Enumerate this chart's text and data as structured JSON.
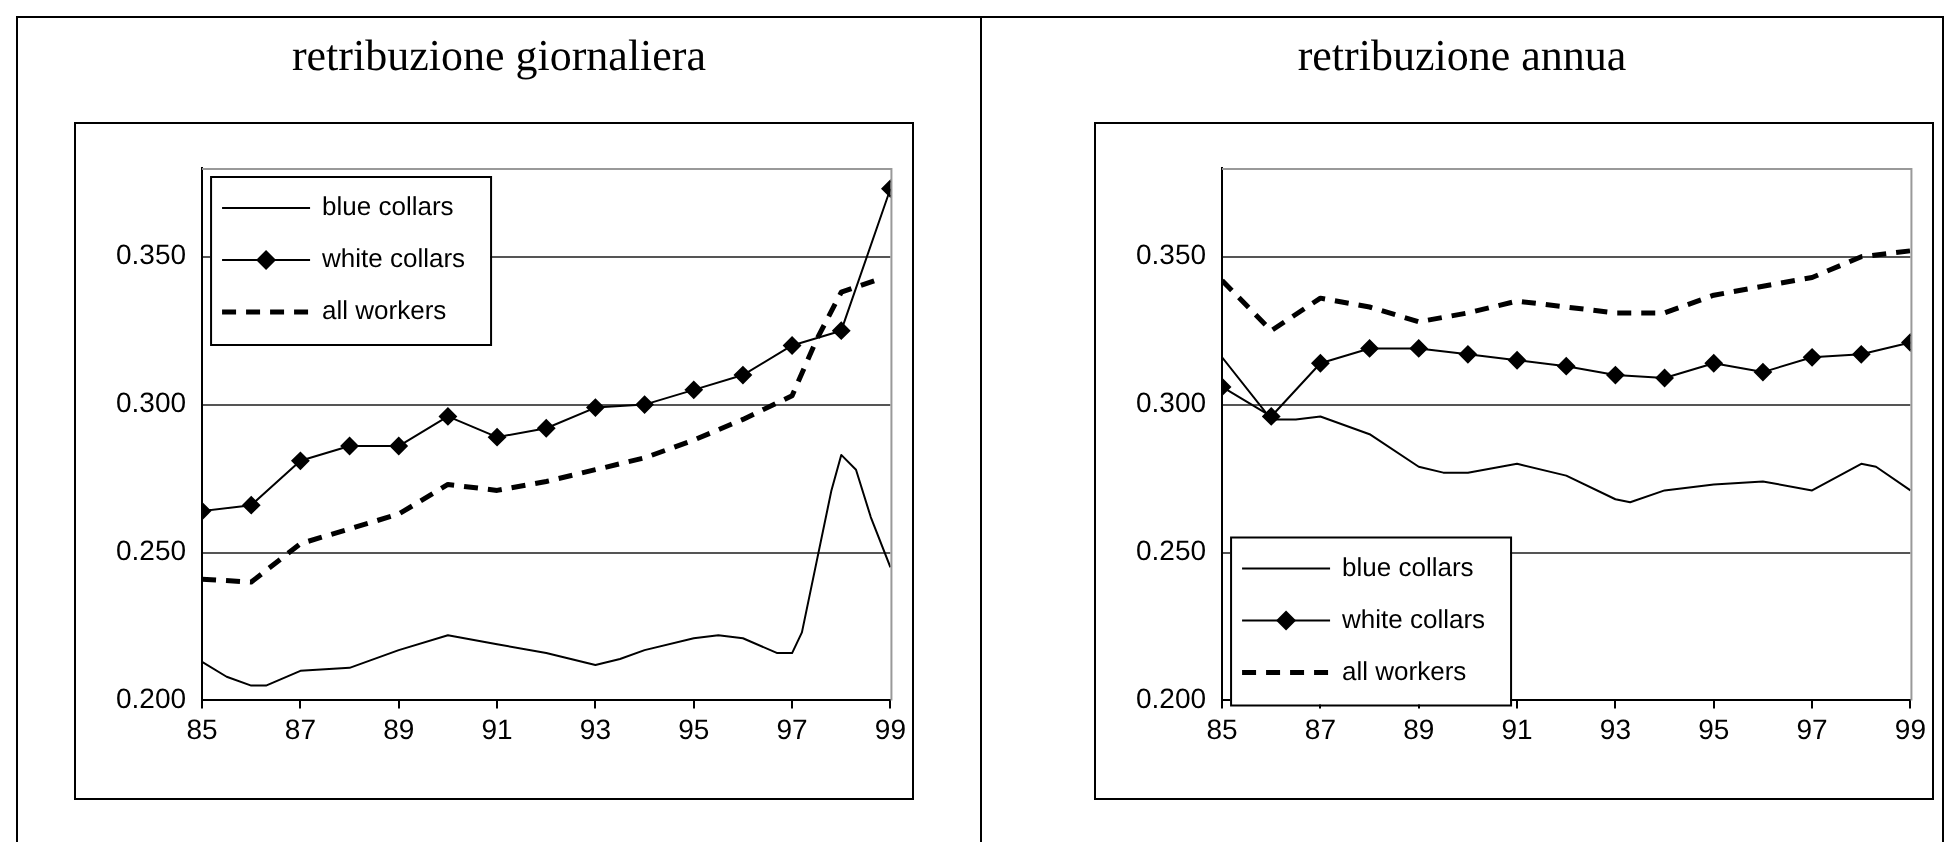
{
  "chart_data": [
    {
      "type": "line",
      "title": "retribuzione giornaliera",
      "xlim": [
        85,
        99
      ],
      "xticks": [
        85,
        87,
        89,
        91,
        93,
        95,
        97,
        99
      ],
      "ylim": [
        0.2,
        0.38
      ],
      "yticks": [
        {
          "value": 0.2,
          "label": "0.200"
        },
        {
          "value": 0.25,
          "label": "0.250"
        },
        {
          "value": 0.3,
          "label": "0.300"
        },
        {
          "value": 0.35,
          "label": "0.350"
        }
      ],
      "grid": "y",
      "legend": "top left",
      "series": [
        {
          "name": "blue collars",
          "color": "#000000",
          "x": [
            85,
            85.5,
            86,
            86.3,
            87,
            88,
            89,
            90,
            91,
            92,
            93,
            93.5,
            94,
            95,
            95.5,
            96,
            96.7,
            97,
            97.2,
            97.5,
            97.8,
            98,
            98.3,
            98.6,
            99
          ],
          "values": [
            0.213,
            0.208,
            0.205,
            0.205,
            0.21,
            0.211,
            0.217,
            0.222,
            0.219,
            0.216,
            0.212,
            0.214,
            0.217,
            0.221,
            0.222,
            0.221,
            0.216,
            0.216,
            0.223,
            0.247,
            0.271,
            0.283,
            0.278,
            0.262,
            0.245
          ]
        },
        {
          "name": "white collars",
          "color": "#000000",
          "marker": "diamond",
          "x": [
            85,
            86,
            87,
            88,
            89,
            90,
            91,
            92,
            93,
            94,
            95,
            96,
            97,
            98,
            99
          ],
          "values": [
            0.264,
            0.266,
            0.281,
            0.286,
            0.286,
            0.296,
            0.289,
            0.292,
            0.299,
            0.3,
            0.305,
            0.31,
            0.32,
            0.325,
            0.373
          ]
        },
        {
          "name": "all workers",
          "color": "#000000",
          "line_style": "dashed",
          "x": [
            85,
            86,
            87,
            88,
            89,
            90,
            91,
            92,
            93,
            94,
            95,
            96,
            97,
            97.5,
            98,
            98.7
          ],
          "values": [
            0.241,
            0.24,
            0.253,
            0.258,
            0.263,
            0.273,
            0.271,
            0.274,
            0.278,
            0.282,
            0.288,
            0.295,
            0.303,
            0.322,
            0.338,
            0.342
          ]
        }
      ]
    },
    {
      "type": "line",
      "title": "retribuzione annua",
      "xlim": [
        85,
        99
      ],
      "xticks": [
        85,
        87,
        89,
        91,
        93,
        95,
        97,
        99
      ],
      "ylim": [
        0.2,
        0.38
      ],
      "yticks": [
        {
          "value": 0.2,
          "label": "0.200"
        },
        {
          "value": 0.25,
          "label": "0.250"
        },
        {
          "value": 0.3,
          "label": "0.300"
        },
        {
          "value": 0.35,
          "label": "0.350"
        }
      ],
      "grid": "y",
      "legend": "bottom left",
      "series": [
        {
          "name": "blue collars",
          "color": "#000000",
          "x": [
            85,
            86,
            86.5,
            87,
            88,
            89,
            89.5,
            90,
            91,
            92,
            93,
            93.3,
            94,
            95,
            96,
            97,
            98,
            98.3,
            99
          ],
          "values": [
            0.316,
            0.295,
            0.295,
            0.296,
            0.29,
            0.279,
            0.277,
            0.277,
            0.28,
            0.276,
            0.268,
            0.267,
            0.271,
            0.273,
            0.274,
            0.271,
            0.28,
            0.279,
            0.271
          ]
        },
        {
          "name": "white collars",
          "color": "#000000",
          "marker": "diamond",
          "x": [
            85,
            86,
            87,
            88,
            89,
            90,
            91,
            92,
            93,
            94,
            95,
            96,
            97,
            98,
            99
          ],
          "values": [
            0.306,
            0.296,
            0.314,
            0.319,
            0.319,
            0.317,
            0.315,
            0.313,
            0.31,
            0.309,
            0.314,
            0.311,
            0.316,
            0.317,
            0.321
          ]
        },
        {
          "name": "all workers",
          "color": "#000000",
          "line_style": "dashed",
          "x": [
            85,
            86,
            87,
            88,
            89,
            90,
            91,
            92,
            93,
            94,
            95,
            96,
            97,
            98,
            99
          ],
          "values": [
            0.342,
            0.325,
            0.336,
            0.333,
            0.328,
            0.331,
            0.335,
            0.333,
            0.331,
            0.331,
            0.337,
            0.34,
            0.343,
            0.35,
            0.352
          ]
        }
      ]
    }
  ]
}
